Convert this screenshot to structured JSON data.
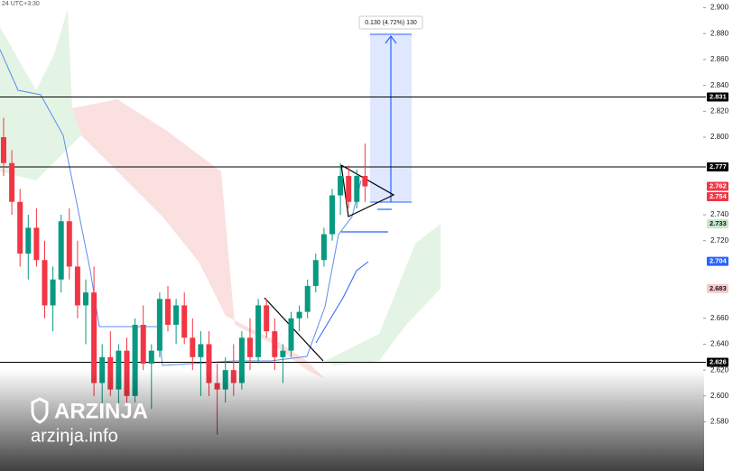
{
  "chart_data": {
    "type": "candlestick",
    "header_text": "24 UTC+3:30",
    "annotation": "0.130 (4.72%) 130",
    "watermark": {
      "brand": "ARZINJA",
      "site": "arzinja.info"
    },
    "ylim": [
      2.542,
      2.906
    ],
    "yticks": [
      {
        "value": 2.9,
        "label": "2.900"
      },
      {
        "value": 2.88,
        "label": "2.880"
      },
      {
        "value": 2.86,
        "label": "2.860"
      },
      {
        "value": 2.84,
        "label": "2.840"
      },
      {
        "value": 2.82,
        "label": "2.820"
      },
      {
        "value": 2.8,
        "label": "2.800"
      },
      {
        "value": 2.74,
        "label": "2.740"
      },
      {
        "value": 2.72,
        "label": "2.720"
      },
      {
        "value": 2.66,
        "label": "2.660"
      },
      {
        "value": 2.64,
        "label": "2.640"
      },
      {
        "value": 2.62,
        "label": "2.620"
      },
      {
        "value": 2.6,
        "label": "2.600"
      },
      {
        "value": 2.58,
        "label": "2.580"
      }
    ],
    "horizontal_lines": [
      2.831,
      2.777,
      2.626
    ],
    "price_labels": {
      "values": [
        2.831,
        2.777,
        2.762,
        2.754,
        2.733,
        2.704,
        2.683,
        2.626
      ],
      "colors": [
        "#000000",
        "#000000",
        "#f23645",
        "#f23645",
        "#c8e6c9",
        "#2962ff",
        "#f8c9c9",
        "#000000"
      ]
    },
    "up_color": "#089981",
    "down_color": "#f23645",
    "open": [
      2.8,
      2.78,
      2.75,
      2.71,
      2.73,
      2.705,
      2.67,
      2.69,
      2.735,
      2.7,
      2.67,
      2.68,
      2.61,
      2.63,
      2.605,
      2.635,
      2.6,
      2.655,
      2.625,
      2.635,
      2.675,
      2.655,
      2.67,
      2.645,
      2.63,
      2.64,
      2.61,
      2.605,
      2.62,
      2.61,
      2.645,
      2.63,
      2.67,
      2.65,
      2.63,
      2.635,
      2.66,
      2.665,
      2.685,
      2.705,
      2.725,
      2.755,
      2.77,
      2.75,
      2.77
    ],
    "high": [
      2.815,
      2.79,
      2.76,
      2.74,
      2.745,
      2.72,
      2.7,
      2.74,
      2.745,
      2.72,
      2.69,
      2.7,
      2.64,
      2.65,
      2.64,
      2.645,
      2.66,
      2.67,
      2.64,
      2.68,
      2.685,
      2.675,
      2.68,
      2.66,
      2.65,
      2.65,
      2.625,
      2.63,
      2.64,
      2.65,
      2.66,
      2.675,
      2.675,
      2.66,
      2.64,
      2.665,
      2.67,
      2.69,
      2.71,
      2.73,
      2.76,
      2.78,
      2.778,
      2.775,
      2.795
    ],
    "low": [
      2.77,
      2.74,
      2.7,
      2.69,
      2.7,
      2.66,
      2.65,
      2.68,
      2.69,
      2.66,
      2.64,
      2.6,
      2.59,
      2.6,
      2.59,
      2.595,
      2.595,
      2.62,
      2.59,
      2.63,
      2.65,
      2.64,
      2.64,
      2.62,
      2.6,
      2.6,
      2.57,
      2.595,
      2.6,
      2.605,
      2.62,
      2.625,
      2.645,
      2.62,
      2.61,
      2.63,
      2.65,
      2.66,
      2.68,
      2.7,
      2.72,
      2.74,
      2.745,
      2.745,
      2.75
    ],
    "close": [
      2.78,
      2.75,
      2.71,
      2.73,
      2.705,
      2.67,
      2.69,
      2.735,
      2.7,
      2.67,
      2.68,
      2.61,
      2.63,
      2.605,
      2.635,
      2.6,
      2.655,
      2.625,
      2.635,
      2.675,
      2.655,
      2.67,
      2.645,
      2.63,
      2.64,
      2.61,
      2.605,
      2.62,
      2.61,
      2.645,
      2.63,
      2.67,
      2.65,
      2.63,
      2.635,
      2.66,
      2.665,
      2.685,
      2.705,
      2.725,
      2.755,
      2.77,
      2.75,
      2.77,
      2.762
    ]
  }
}
